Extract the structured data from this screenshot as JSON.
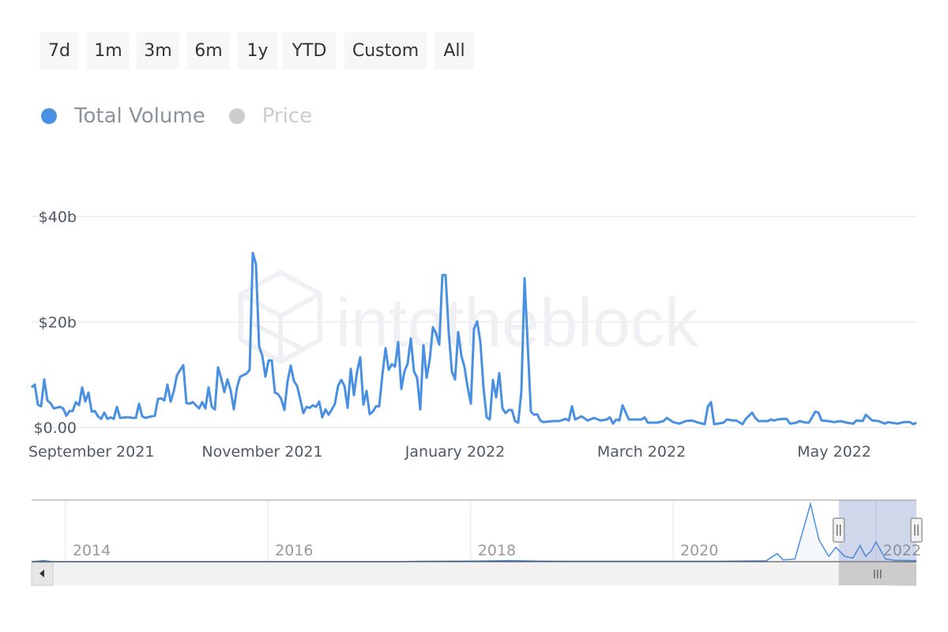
{
  "range_selector": {
    "buttons": [
      "7d",
      "1m",
      "3m",
      "6m",
      "1y",
      "YTD",
      "Custom",
      "All"
    ]
  },
  "legend": {
    "items": [
      {
        "label": "Total Volume",
        "color": "#4a90e2",
        "active": true
      },
      {
        "label": "Price",
        "color": "#cccccc",
        "active": false
      }
    ]
  },
  "watermark": "intotheblock",
  "chart_data": {
    "type": "line",
    "series": [
      {
        "name": "Total Volume",
        "color": "#4a90e2"
      }
    ],
    "xlim": [
      "2021-08-20",
      "2022-05-27"
    ],
    "ylim": [
      0,
      40
    ],
    "ylabel_unit": "USD billions",
    "grid": true,
    "legend_placement": "top-left",
    "y_ticks": [
      {
        "value": 0,
        "label": "$0.00"
      },
      {
        "value": 20,
        "label": "$20b"
      },
      {
        "value": 40,
        "label": "$40b"
      }
    ],
    "x_ticks": [
      {
        "date": "2021-09-01",
        "label": "September 2021"
      },
      {
        "date": "2021-11-01",
        "label": "November 2021"
      },
      {
        "date": "2022-01-01",
        "label": "January 2022"
      },
      {
        "date": "2022-03-01",
        "label": "March 2022"
      },
      {
        "date": "2022-05-01",
        "label": "May 2022"
      }
    ],
    "points": [
      [
        "2021-08-20",
        7.6
      ],
      [
        "2021-08-21",
        8.1
      ],
      [
        "2021-08-22",
        4.3
      ],
      [
        "2021-08-23",
        4.0
      ],
      [
        "2021-08-24",
        9.1
      ],
      [
        "2021-08-25",
        5.1
      ],
      [
        "2021-08-26",
        4.6
      ],
      [
        "2021-08-27",
        3.6
      ],
      [
        "2021-08-29",
        3.9
      ],
      [
        "2021-08-30",
        3.6
      ],
      [
        "2021-08-31",
        2.2
      ],
      [
        "2021-09-01",
        3.1
      ],
      [
        "2021-09-02",
        3.1
      ],
      [
        "2021-09-03",
        4.8
      ],
      [
        "2021-09-04",
        4.2
      ],
      [
        "2021-09-05",
        7.6
      ],
      [
        "2021-09-06",
        4.9
      ],
      [
        "2021-09-07",
        6.6
      ],
      [
        "2021-09-08",
        3.0
      ],
      [
        "2021-09-09",
        3.1
      ],
      [
        "2021-09-10",
        2.1
      ],
      [
        "2021-09-11",
        1.6
      ],
      [
        "2021-09-12",
        2.8
      ],
      [
        "2021-09-13",
        1.6
      ],
      [
        "2021-09-14",
        1.9
      ],
      [
        "2021-09-15",
        1.6
      ],
      [
        "2021-09-16",
        3.9
      ],
      [
        "2021-09-17",
        1.8
      ],
      [
        "2021-09-19",
        1.9
      ],
      [
        "2021-09-20",
        1.9
      ],
      [
        "2021-09-21",
        1.8
      ],
      [
        "2021-09-22",
        1.8
      ],
      [
        "2021-09-23",
        4.5
      ],
      [
        "2021-09-24",
        2.1
      ],
      [
        "2021-09-25",
        1.8
      ],
      [
        "2021-09-27",
        2.1
      ],
      [
        "2021-09-28",
        2.2
      ],
      [
        "2021-09-29",
        5.4
      ],
      [
        "2021-09-30",
        5.5
      ],
      [
        "2021-10-01",
        5.1
      ],
      [
        "2021-10-02",
        8.1
      ],
      [
        "2021-10-03",
        4.9
      ],
      [
        "2021-10-04",
        6.9
      ],
      [
        "2021-10-05",
        9.9
      ],
      [
        "2021-10-07",
        11.8
      ],
      [
        "2021-10-08",
        4.6
      ],
      [
        "2021-10-09",
        4.5
      ],
      [
        "2021-10-10",
        4.8
      ],
      [
        "2021-10-12",
        3.6
      ],
      [
        "2021-10-13",
        4.8
      ],
      [
        "2021-10-14",
        3.6
      ],
      [
        "2021-10-15",
        7.6
      ],
      [
        "2021-10-16",
        3.9
      ],
      [
        "2021-10-17",
        3.4
      ],
      [
        "2021-10-18",
        11.4
      ],
      [
        "2021-10-19",
        9.3
      ],
      [
        "2021-10-20",
        6.7
      ],
      [
        "2021-10-21",
        9.1
      ],
      [
        "2021-10-22",
        7.0
      ],
      [
        "2021-10-23",
        3.4
      ],
      [
        "2021-10-24",
        7.6
      ],
      [
        "2021-10-25",
        9.6
      ],
      [
        "2021-10-27",
        10.2
      ],
      [
        "2021-10-28",
        10.9
      ],
      [
        "2021-10-29",
        33.1
      ],
      [
        "2021-10-30",
        30.9
      ],
      [
        "2021-10-31",
        15.4
      ],
      [
        "2021-11-01",
        13.6
      ],
      [
        "2021-11-02",
        9.6
      ],
      [
        "2021-11-03",
        12.7
      ],
      [
        "2021-11-04",
        12.7
      ],
      [
        "2021-11-05",
        6.6
      ],
      [
        "2021-11-06",
        6.3
      ],
      [
        "2021-11-07",
        5.4
      ],
      [
        "2021-11-08",
        3.3
      ],
      [
        "2021-11-09",
        8.7
      ],
      [
        "2021-11-10",
        11.7
      ],
      [
        "2021-11-11",
        8.8
      ],
      [
        "2021-11-12",
        7.9
      ],
      [
        "2021-11-13",
        5.4
      ],
      [
        "2021-11-14",
        2.7
      ],
      [
        "2021-11-15",
        3.9
      ],
      [
        "2021-11-16",
        3.7
      ],
      [
        "2021-11-17",
        4.2
      ],
      [
        "2021-11-18",
        3.9
      ],
      [
        "2021-11-19",
        4.9
      ],
      [
        "2021-11-20",
        1.9
      ],
      [
        "2021-11-21",
        3.4
      ],
      [
        "2021-11-22",
        2.4
      ],
      [
        "2021-11-23",
        3.4
      ],
      [
        "2021-11-24",
        4.5
      ],
      [
        "2021-11-25",
        7.9
      ],
      [
        "2021-11-26",
        9.0
      ],
      [
        "2021-11-27",
        7.9
      ],
      [
        "2021-11-28",
        3.7
      ],
      [
        "2021-11-29",
        11.1
      ],
      [
        "2021-11-30",
        6.1
      ],
      [
        "2021-12-01",
        10.6
      ],
      [
        "2021-12-02",
        13.3
      ],
      [
        "2021-12-03",
        4.3
      ],
      [
        "2021-12-04",
        6.9
      ],
      [
        "2021-12-05",
        2.5
      ],
      [
        "2021-12-06",
        3.0
      ],
      [
        "2021-12-07",
        4.0
      ],
      [
        "2021-12-08",
        4.0
      ],
      [
        "2021-12-09",
        9.9
      ],
      [
        "2021-12-10",
        15.0
      ],
      [
        "2021-12-11",
        10.9
      ],
      [
        "2021-12-12",
        12.0
      ],
      [
        "2021-12-13",
        11.5
      ],
      [
        "2021-12-14",
        16.2
      ],
      [
        "2021-12-15",
        7.3
      ],
      [
        "2021-12-16",
        10.6
      ],
      [
        "2021-12-17",
        12.1
      ],
      [
        "2021-12-18",
        16.9
      ],
      [
        "2021-12-19",
        10.6
      ],
      [
        "2021-12-20",
        9.4
      ],
      [
        "2021-12-21",
        3.4
      ],
      [
        "2021-12-22",
        15.6
      ],
      [
        "2021-12-23",
        9.4
      ],
      [
        "2021-12-24",
        12.9
      ],
      [
        "2021-12-25",
        19.0
      ],
      [
        "2021-12-26",
        17.8
      ],
      [
        "2021-12-27",
        15.7
      ],
      [
        "2021-12-28",
        28.9
      ],
      [
        "2021-12-29",
        28.9
      ],
      [
        "2021-12-30",
        18.1
      ],
      [
        "2021-12-31",
        10.6
      ],
      [
        "2022-01-01",
        9.1
      ],
      [
        "2022-01-02",
        18.1
      ],
      [
        "2022-01-03",
        13.6
      ],
      [
        "2022-01-04",
        11.4
      ],
      [
        "2022-01-05",
        7.6
      ],
      [
        "2022-01-06",
        4.5
      ],
      [
        "2022-01-07",
        18.7
      ],
      [
        "2022-01-08",
        20.1
      ],
      [
        "2022-01-09",
        16.3
      ],
      [
        "2022-01-10",
        7.6
      ],
      [
        "2022-01-11",
        1.9
      ],
      [
        "2022-01-12",
        1.5
      ],
      [
        "2022-01-13",
        9.0
      ],
      [
        "2022-01-14",
        5.7
      ],
      [
        "2022-01-15",
        10.3
      ],
      [
        "2022-01-16",
        3.6
      ],
      [
        "2022-01-17",
        2.7
      ],
      [
        "2022-01-18",
        3.3
      ],
      [
        "2022-01-19",
        3.3
      ],
      [
        "2022-01-20",
        1.2
      ],
      [
        "2022-01-21",
        0.9
      ],
      [
        "2022-01-22",
        6.9
      ],
      [
        "2022-01-23",
        28.3
      ],
      [
        "2022-01-25",
        3.0
      ],
      [
        "2022-01-26",
        2.4
      ],
      [
        "2022-01-27",
        2.5
      ],
      [
        "2022-01-28",
        1.3
      ],
      [
        "2022-01-29",
        1.0
      ],
      [
        "2022-02-01",
        1.2
      ],
      [
        "2022-02-03",
        1.2
      ],
      [
        "2022-02-05",
        1.6
      ],
      [
        "2022-02-06",
        1.3
      ],
      [
        "2022-02-07",
        4.0
      ],
      [
        "2022-02-08",
        1.5
      ],
      [
        "2022-02-10",
        2.1
      ],
      [
        "2022-02-12",
        1.3
      ],
      [
        "2022-02-14",
        1.8
      ],
      [
        "2022-02-16",
        1.3
      ],
      [
        "2022-02-18",
        1.5
      ],
      [
        "2022-02-19",
        1.9
      ],
      [
        "2022-02-20",
        0.7
      ],
      [
        "2022-02-21",
        1.5
      ],
      [
        "2022-02-22",
        1.3
      ],
      [
        "2022-02-23",
        4.2
      ],
      [
        "2022-02-25",
        1.5
      ],
      [
        "2022-02-27",
        1.5
      ],
      [
        "2022-03-01",
        1.5
      ],
      [
        "2022-03-02",
        1.9
      ],
      [
        "2022-03-03",
        0.9
      ],
      [
        "2022-03-06",
        0.9
      ],
      [
        "2022-03-08",
        1.2
      ],
      [
        "2022-03-09",
        1.8
      ],
      [
        "2022-03-11",
        1.0
      ],
      [
        "2022-03-13",
        0.7
      ],
      [
        "2022-03-15",
        1.2
      ],
      [
        "2022-03-17",
        1.3
      ],
      [
        "2022-03-19",
        0.9
      ],
      [
        "2022-03-21",
        0.6
      ],
      [
        "2022-03-22",
        3.9
      ],
      [
        "2022-03-23",
        4.8
      ],
      [
        "2022-03-24",
        0.6
      ],
      [
        "2022-03-27",
        0.9
      ],
      [
        "2022-03-28",
        1.5
      ],
      [
        "2022-03-30",
        1.3
      ],
      [
        "2022-03-31",
        1.3
      ],
      [
        "2022-04-02",
        0.6
      ],
      [
        "2022-04-03",
        1.6
      ],
      [
        "2022-04-05",
        2.8
      ],
      [
        "2022-04-06",
        1.8
      ],
      [
        "2022-04-07",
        1.2
      ],
      [
        "2022-04-10",
        1.2
      ],
      [
        "2022-04-11",
        1.5
      ],
      [
        "2022-04-12",
        1.3
      ],
      [
        "2022-04-13",
        1.5
      ],
      [
        "2022-04-15",
        1.6
      ],
      [
        "2022-04-16",
        1.6
      ],
      [
        "2022-04-17",
        0.7
      ],
      [
        "2022-04-19",
        0.9
      ],
      [
        "2022-04-20",
        1.2
      ],
      [
        "2022-04-22",
        0.9
      ],
      [
        "2022-04-23",
        0.9
      ],
      [
        "2022-04-25",
        3.0
      ],
      [
        "2022-04-26",
        2.8
      ],
      [
        "2022-04-27",
        1.3
      ],
      [
        "2022-04-29",
        1.2
      ],
      [
        "2022-05-01",
        1.0
      ],
      [
        "2022-05-03",
        1.2
      ],
      [
        "2022-05-05",
        0.9
      ],
      [
        "2022-05-07",
        0.7
      ],
      [
        "2022-05-08",
        1.3
      ],
      [
        "2022-05-10",
        1.2
      ],
      [
        "2022-05-11",
        2.4
      ],
      [
        "2022-05-13",
        1.3
      ],
      [
        "2022-05-15",
        1.2
      ],
      [
        "2022-05-17",
        0.7
      ],
      [
        "2022-05-18",
        1.0
      ],
      [
        "2022-05-21",
        0.7
      ],
      [
        "2022-05-23",
        1.0
      ],
      [
        "2022-05-25",
        1.0
      ],
      [
        "2022-05-26",
        0.6
      ],
      [
        "2022-05-27",
        0.9
      ]
    ],
    "navigator": {
      "xlim": [
        "2013-09-01",
        "2022-05-27"
      ],
      "x_ticks": [
        {
          "date": "2014-01-01",
          "label": "2014"
        },
        {
          "date": "2016-01-01",
          "label": "2016"
        },
        {
          "date": "2018-01-01",
          "label": "2018"
        },
        {
          "date": "2020-01-01",
          "label": "2020"
        },
        {
          "date": "2022-01-01",
          "label": "2022"
        }
      ],
      "selected_range": [
        "2021-08-20",
        "2022-05-27"
      ],
      "points": [
        [
          "2013-09-01",
          0
        ],
        [
          "2013-10-15",
          0.6
        ],
        [
          "2013-11-15",
          0
        ],
        [
          "2017-05-01",
          0
        ],
        [
          "2017-07-01",
          0.2
        ],
        [
          "2018-01-01",
          0.3
        ],
        [
          "2018-06-01",
          0.6
        ],
        [
          "2018-09-01",
          0.3
        ],
        [
          "2019-01-01",
          0.2
        ],
        [
          "2020-06-01",
          0.2
        ],
        [
          "2020-12-01",
          0.5
        ],
        [
          "2021-01-10",
          4.5
        ],
        [
          "2021-02-01",
          1.0
        ],
        [
          "2021-03-15",
          1.5
        ],
        [
          "2021-05-10",
          32
        ],
        [
          "2021-06-10",
          12
        ],
        [
          "2021-07-15",
          3
        ],
        [
          "2021-08-10",
          8
        ],
        [
          "2021-09-10",
          3
        ],
        [
          "2021-10-10",
          2
        ],
        [
          "2021-11-05",
          9
        ],
        [
          "2021-11-25",
          3
        ],
        [
          "2021-12-15",
          6
        ],
        [
          "2022-01-01",
          11
        ],
        [
          "2022-02-05",
          1.5
        ],
        [
          "2022-03-10",
          0.8
        ],
        [
          "2022-05-27",
          0.6
        ]
      ]
    }
  }
}
